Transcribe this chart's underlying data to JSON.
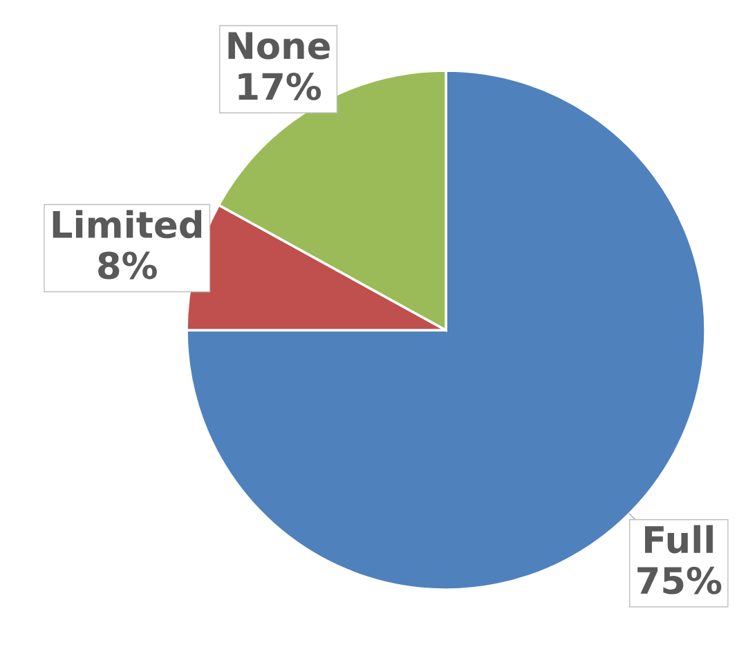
{
  "chart_data": {
    "type": "pie",
    "categories": [
      "Full",
      "Limited",
      "None"
    ],
    "values": [
      75,
      8,
      17
    ],
    "value_labels": [
      "75%",
      "8%",
      "17%"
    ],
    "colors": [
      "#4f81bd",
      "#c0504d",
      "#9bbb59"
    ],
    "legend": false
  }
}
